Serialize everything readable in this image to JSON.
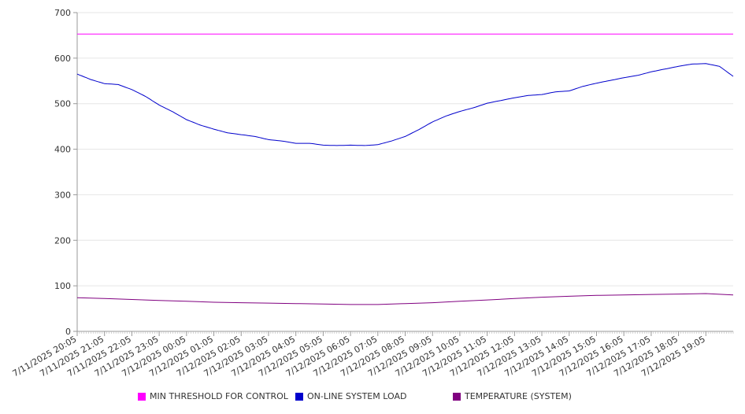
{
  "chart_data": {
    "type": "line",
    "title": "",
    "xlabel": "",
    "ylabel": "",
    "ylim": [
      0,
      700
    ],
    "y_ticks": [
      0,
      100,
      200,
      300,
      400,
      500,
      600,
      700
    ],
    "grid": "horizontal",
    "legend_position": "bottom",
    "x_tick_labels": [
      "7/11/2025 20:05",
      "7/11/2025 21:05",
      "7/11/2025 22:05",
      "7/11/2025 23:05",
      "7/12/2025 00:05",
      "7/12/2025 01:05",
      "7/12/2025 02:05",
      "7/12/2025 03:05",
      "7/12/2025 04:05",
      "7/12/2025 05:05",
      "7/12/2025 06:05",
      "7/12/2025 07:05",
      "7/12/2025 08:05",
      "7/12/2025 09:05",
      "7/12/2025 10:05",
      "7/12/2025 11:05",
      "7/12/2025 12:05",
      "7/12/2025 13:05",
      "7/12/2025 14:05",
      "7/12/2025 15:05",
      "7/12/2025 16:05",
      "7/12/2025 17:05",
      "7/12/2025 18:05",
      "7/12/2025 19:05"
    ],
    "x_end_hour": 24,
    "series": [
      {
        "name": "MIN THRESHOLD FOR CONTROL",
        "color": "#ff00ff",
        "x_hours": [
          0,
          24
        ],
        "values": [
          653,
          653
        ]
      },
      {
        "name": "ON-LINE SYSTEM LOAD",
        "color": "#0000cc",
        "x_hours": [
          0,
          0.5,
          1,
          1.5,
          2,
          2.5,
          3,
          3.5,
          4,
          4.5,
          5,
          5.5,
          6,
          6.5,
          7,
          7.5,
          8,
          8.5,
          9,
          9.5,
          10,
          10.5,
          11,
          11.5,
          12,
          12.5,
          13,
          13.5,
          14,
          14.5,
          15,
          15.5,
          16,
          16.5,
          17,
          17.5,
          18,
          18.5,
          19,
          19.5,
          20,
          20.5,
          21,
          21.5,
          22,
          22.5,
          23,
          23.5,
          24
        ],
        "values": [
          565,
          553,
          544,
          542,
          531,
          516,
          497,
          482,
          465,
          453,
          444,
          436,
          432,
          428,
          421,
          418,
          413,
          413,
          409,
          408,
          409,
          408,
          410,
          418,
          428,
          443,
          460,
          473,
          483,
          491,
          501,
          507,
          513,
          518,
          520,
          526,
          528,
          538,
          545,
          551,
          557,
          562,
          570,
          576,
          582,
          587,
          588,
          582,
          560
        ]
      },
      {
        "name": "TEMPERATURE (SYSTEM)",
        "color": "#800080",
        "x_hours": [
          0,
          1,
          2,
          3,
          4,
          5,
          6,
          7,
          8,
          9,
          10,
          11,
          12,
          13,
          14,
          15,
          16,
          17,
          18,
          19,
          20,
          21,
          22,
          23,
          24
        ],
        "values": [
          74,
          72,
          70,
          68,
          66,
          64,
          63,
          62,
          61,
          60,
          59,
          59,
          61,
          63,
          66,
          69,
          72,
          75,
          77,
          79,
          80,
          81,
          82,
          83,
          80
        ]
      }
    ]
  }
}
